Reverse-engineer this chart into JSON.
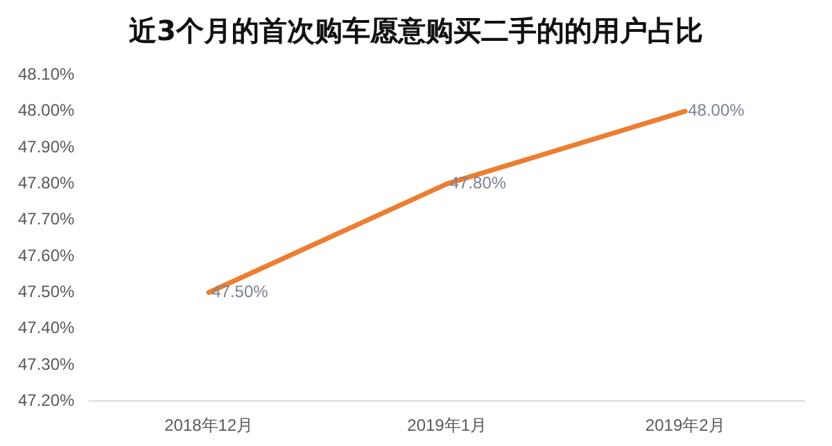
{
  "chart_data": {
    "type": "line",
    "title": "近3个月的首次购车愿意购买二手的的用户占比",
    "categories": [
      "2018年12月",
      "2019年1月",
      "2019年2月"
    ],
    "series": [
      {
        "color": "#ed7d31",
        "values": [
          47.5,
          47.8,
          48.0
        ],
        "value_labels": [
          "47.50%",
          "47.80%",
          "48.00%"
        ]
      }
    ],
    "ylim": [
      47.2,
      48.1
    ],
    "yticks": [
      {
        "value": 47.2,
        "label": "47.20%"
      },
      {
        "value": 47.3,
        "label": "47.30%"
      },
      {
        "value": 47.4,
        "label": "47.40%"
      },
      {
        "value": 47.5,
        "label": "47.50%"
      },
      {
        "value": 47.6,
        "label": "47.60%"
      },
      {
        "value": 47.7,
        "label": "47.70%"
      },
      {
        "value": 47.8,
        "label": "47.80%"
      },
      {
        "value": 47.9,
        "label": "47.90%"
      },
      {
        "value": 48.0,
        "label": "48.00%"
      },
      {
        "value": 48.1,
        "label": "48.10%"
      }
    ],
    "grid": false,
    "legend": false,
    "marker": "none",
    "line_style": "solid"
  }
}
